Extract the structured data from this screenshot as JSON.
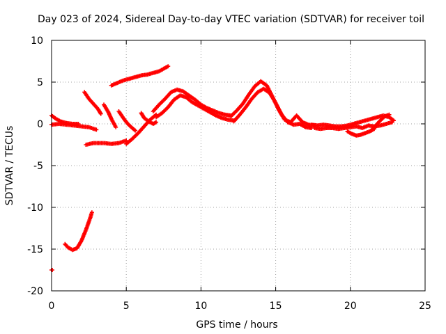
{
  "chart_data": {
    "type": "scatter",
    "title": "Day 023 of 2024, Sidereal Day-to-day VTEC variation (SDTVAR) for receiver toil",
    "xlabel": "GPS time / hours",
    "ylabel": "SDTVAR / TECUs",
    "xlim": [
      0,
      25
    ],
    "ylim": [
      -20,
      10
    ],
    "x_ticks": [
      "0",
      "5",
      "10",
      "15",
      "20",
      "25"
    ],
    "y_ticks": [
      "10",
      "5",
      "0",
      "-5",
      "-10",
      "-15",
      "-20"
    ],
    "grid": true,
    "marker": "plus",
    "color": "#ff0000",
    "series": [
      {
        "name": "SDTVAR",
        "segments": [
          {
            "x": [
              0.0,
              0.05
            ],
            "y": [
              -17.5,
              -17.5
            ]
          },
          {
            "x": [
              0.0,
              0.3,
              0.6,
              1.0,
              1.4,
              1.8
            ],
            "y": [
              1.0,
              0.6,
              0.3,
              0.1,
              0.0,
              0.0
            ]
          },
          {
            "x": [
              0.0,
              0.5,
              1.0,
              1.5,
              2.0,
              2.5,
              3.0
            ],
            "y": [
              -0.1,
              0.0,
              -0.1,
              -0.2,
              -0.3,
              -0.4,
              -0.7
            ]
          },
          {
            "x": [
              0.9,
              1.1,
              1.4,
              1.7,
              2.0,
              2.3,
              2.6,
              2.7
            ],
            "y": [
              -14.4,
              -14.8,
              -15.1,
              -14.9,
              -14.0,
              -12.7,
              -11.2,
              -10.6
            ]
          },
          {
            "x": [
              2.2,
              2.5,
              2.8,
              3.1,
              3.3
            ],
            "y": [
              3.8,
              3.0,
              2.4,
              1.8,
              1.2
            ]
          },
          {
            "x": [
              2.3,
              2.8,
              3.5,
              4.0,
              4.5,
              5.0
            ],
            "y": [
              -2.5,
              -2.3,
              -2.3,
              -2.4,
              -2.3,
              -2.0
            ]
          },
          {
            "x": [
              3.5,
              3.8,
              4.0,
              4.3
            ],
            "y": [
              2.3,
              1.4,
              0.6,
              -0.4
            ]
          },
          {
            "x": [
              4.0,
              4.4,
              4.8,
              5.2,
              5.6,
              6.0,
              6.4,
              6.8,
              7.2,
              7.5,
              7.8
            ],
            "y": [
              4.6,
              4.9,
              5.2,
              5.4,
              5.6,
              5.8,
              5.9,
              6.1,
              6.3,
              6.6,
              6.9
            ]
          },
          {
            "x": [
              4.5,
              4.8,
              5.1,
              5.4,
              5.6
            ],
            "y": [
              1.5,
              0.7,
              0.0,
              -0.5,
              -0.8
            ]
          },
          {
            "x": [
              5.0,
              5.4,
              5.8,
              6.2,
              6.6,
              7.0
            ],
            "y": [
              -2.4,
              -1.8,
              -1.1,
              -0.3,
              0.5,
              1.1
            ]
          },
          {
            "x": [
              6.0,
              6.2,
              6.5,
              6.8,
              7.0
            ],
            "y": [
              1.3,
              0.7,
              0.3,
              0.0,
              0.2
            ]
          },
          {
            "x": [
              6.8,
              7.2,
              7.6,
              8.0,
              8.4,
              8.8,
              9.2,
              9.6,
              10.0,
              10.4,
              10.8,
              11.2,
              11.6,
              12.0
            ],
            "y": [
              1.5,
              2.3,
              3.0,
              3.8,
              4.1,
              3.9,
              3.4,
              2.9,
              2.3,
              1.9,
              1.6,
              1.3,
              1.1,
              1.0
            ]
          },
          {
            "x": [
              7.0,
              7.4,
              7.8,
              8.2,
              8.6,
              9.0,
              9.4,
              9.8,
              10.2,
              10.6,
              11.0,
              11.4,
              11.8,
              12.2
            ],
            "y": [
              0.8,
              1.3,
              2.0,
              2.9,
              3.4,
              3.2,
              2.6,
              2.2,
              1.8,
              1.4,
              1.0,
              0.7,
              0.5,
              0.4
            ]
          },
          {
            "x": [
              12.0,
              12.4,
              12.8,
              13.2,
              13.6,
              14.0,
              14.4,
              14.8,
              15.2,
              15.6,
              16.0,
              16.4,
              16.8,
              17.2,
              17.6
            ],
            "y": [
              0.9,
              1.6,
              2.4,
              3.5,
              4.5,
              5.1,
              4.6,
              3.2,
              1.7,
              0.5,
              0.2,
              1.0,
              0.2,
              -0.1,
              -0.2
            ]
          },
          {
            "x": [
              12.2,
              12.6,
              13.0,
              13.4,
              13.8,
              14.2,
              14.6,
              15.0,
              15.4,
              15.8,
              16.2,
              16.6,
              17.0,
              17.4
            ],
            "y": [
              0.3,
              1.1,
              2.0,
              3.0,
              3.8,
              4.2,
              3.7,
              2.5,
              1.1,
              0.2,
              -0.1,
              0.0,
              -0.4,
              -0.5
            ]
          },
          {
            "x": [
              17.4,
              17.8,
              18.2,
              18.6,
              19.0,
              19.4,
              19.8,
              20.2,
              20.6,
              21.0,
              21.4,
              21.8,
              22.2,
              22.6,
              22.9
            ],
            "y": [
              -0.1,
              -0.2,
              -0.1,
              -0.2,
              -0.3,
              -0.3,
              -0.2,
              0.0,
              0.2,
              0.4,
              0.6,
              0.8,
              1.0,
              0.8,
              0.4
            ]
          },
          {
            "x": [
              17.6,
              18.0,
              18.4,
              18.8,
              19.2,
              19.6,
              20.0,
              20.4,
              20.8,
              21.2,
              21.6,
              22.0,
              22.4,
              22.8
            ],
            "y": [
              -0.5,
              -0.6,
              -0.5,
              -0.5,
              -0.6,
              -0.5,
              -0.4,
              -0.3,
              -0.5,
              -0.2,
              -0.3,
              -0.2,
              0.0,
              0.2
            ]
          },
          {
            "x": [
              19.8,
              20.1,
              20.4,
              20.7,
              21.0,
              21.3,
              21.6
            ],
            "y": [
              -0.9,
              -1.2,
              -1.4,
              -1.3,
              -1.1,
              -0.9,
              -0.6
            ]
          },
          {
            "x": [
              21.4,
              21.7,
              22.0,
              22.3,
              22.6
            ],
            "y": [
              -0.8,
              -0.2,
              0.4,
              0.9,
              1.1
            ]
          }
        ]
      }
    ]
  }
}
